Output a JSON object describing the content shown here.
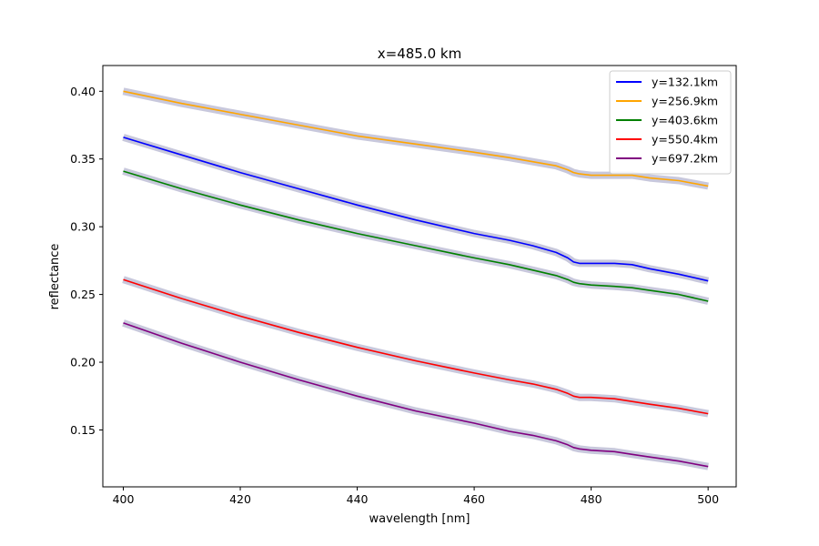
{
  "chart_data": {
    "type": "line",
    "title": "x=485.0 km",
    "xlabel": "wavelength [nm]",
    "ylabel": "reflectance",
    "xlim": [
      396.5,
      504.8
    ],
    "ylim": [
      0.108,
      0.419
    ],
    "xticks": [
      400,
      420,
      440,
      460,
      480,
      500
    ],
    "yticks": [
      0.15,
      0.2,
      0.25,
      0.3,
      0.35,
      0.4
    ],
    "ytick_labels": [
      "0.15",
      "0.20",
      "0.25",
      "0.30",
      "0.35",
      "0.40"
    ],
    "grid": false,
    "legend_position": "top-right",
    "band_color": "#c8c8dc",
    "series": [
      {
        "name": "y=132.1km",
        "color": "#0000ff",
        "x": [
          400,
          410,
          420,
          430,
          440,
          450,
          460,
          466,
          470,
          474,
          476,
          477,
          478,
          480,
          484,
          487,
          490,
          495,
          500
        ],
        "values": [
          0.366,
          0.353,
          0.34,
          0.328,
          0.316,
          0.305,
          0.295,
          0.29,
          0.286,
          0.281,
          0.277,
          0.274,
          0.273,
          0.273,
          0.273,
          0.272,
          0.269,
          0.265,
          0.26
        ]
      },
      {
        "name": "y=256.9km",
        "color": "#ffa500",
        "x": [
          400,
          410,
          420,
          430,
          440,
          450,
          460,
          466,
          470,
          474,
          476,
          477,
          478,
          480,
          484,
          487,
          490,
          495,
          500
        ],
        "values": [
          0.4,
          0.391,
          0.383,
          0.375,
          0.367,
          0.361,
          0.355,
          0.351,
          0.348,
          0.345,
          0.342,
          0.34,
          0.339,
          0.338,
          0.338,
          0.338,
          0.336,
          0.334,
          0.33
        ]
      },
      {
        "name": "y=403.6km",
        "color": "#008000",
        "x": [
          400,
          410,
          420,
          430,
          440,
          450,
          460,
          466,
          470,
          474,
          476,
          477,
          478,
          480,
          484,
          487,
          490,
          495,
          500
        ],
        "values": [
          0.341,
          0.328,
          0.316,
          0.305,
          0.295,
          0.286,
          0.277,
          0.272,
          0.268,
          0.264,
          0.261,
          0.259,
          0.258,
          0.257,
          0.256,
          0.255,
          0.253,
          0.25,
          0.245
        ]
      },
      {
        "name": "y=550.4km",
        "color": "#ff0000",
        "x": [
          400,
          410,
          420,
          430,
          440,
          450,
          460,
          466,
          470,
          474,
          476,
          477,
          478,
          480,
          484,
          487,
          490,
          495,
          500
        ],
        "values": [
          0.261,
          0.247,
          0.234,
          0.222,
          0.211,
          0.201,
          0.192,
          0.187,
          0.184,
          0.18,
          0.177,
          0.175,
          0.174,
          0.174,
          0.173,
          0.171,
          0.169,
          0.166,
          0.162
        ]
      },
      {
        "name": "y=697.2km",
        "color": "#800080",
        "x": [
          400,
          410,
          420,
          430,
          440,
          450,
          460,
          466,
          470,
          474,
          476,
          477,
          478,
          480,
          484,
          487,
          490,
          495,
          500
        ],
        "values": [
          0.229,
          0.214,
          0.2,
          0.187,
          0.175,
          0.164,
          0.155,
          0.149,
          0.146,
          0.142,
          0.139,
          0.137,
          0.136,
          0.135,
          0.134,
          0.132,
          0.13,
          0.127,
          0.123
        ]
      }
    ]
  }
}
